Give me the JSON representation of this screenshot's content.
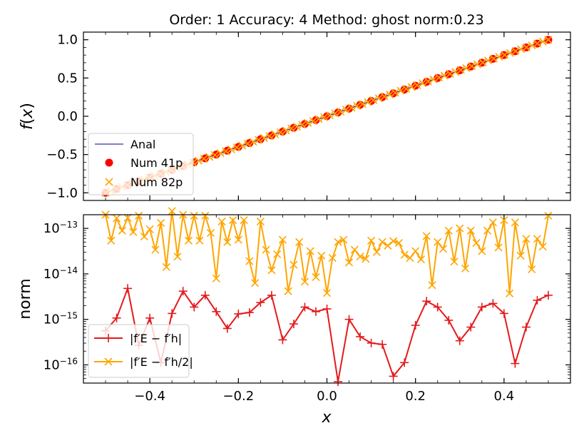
{
  "chart_data": [
    {
      "type": "line",
      "title": "Order: 1 Accuracy: 4 Method: ghost norm:0.23",
      "xlabel": "",
      "ylabel": "f(x)",
      "xlim": [
        -0.55,
        0.55
      ],
      "ylim": [
        -1.1,
        1.1
      ],
      "yticks": [
        -1.0,
        -0.5,
        0.0,
        0.5,
        1.0
      ],
      "ytick_labels": [
        "−1.0",
        "−0.5",
        "0.0",
        "0.5",
        "1.0"
      ],
      "grid": false,
      "legend_position": "lower-left",
      "series": [
        {
          "name": "Anal",
          "style": "line",
          "color": "#00008b",
          "x": [
            -0.5,
            0.5
          ],
          "y": [
            -1.0,
            1.0
          ]
        },
        {
          "name": "Num 41p",
          "style": "markers-circle",
          "color": "#ff0000",
          "n": 41,
          "x_range": [
            -0.5,
            0.5
          ],
          "y_range": [
            -1.0,
            1.0
          ]
        },
        {
          "name": "Num 82p",
          "style": "markers-x",
          "color": "#ffa500",
          "n": 82,
          "x_range": [
            -0.5,
            0.5
          ],
          "y_range": [
            -1.0,
            1.0
          ]
        }
      ]
    },
    {
      "type": "line",
      "title": "",
      "xlabel": "x",
      "ylabel": "norm",
      "xlim": [
        -0.55,
        0.55
      ],
      "ylim_log10": [
        -16.4,
        -12.7
      ],
      "yscale": "log",
      "xticks": [
        -0.4,
        -0.2,
        0.0,
        0.2,
        0.4
      ],
      "xtick_labels": [
        "−0.4",
        "−0.2",
        "0.0",
        "0.2",
        "0.4"
      ],
      "yticks_log10": [
        -13,
        -14,
        -15,
        -16
      ],
      "grid": false,
      "legend_position": "lower-left",
      "series": [
        {
          "name": "|f′E − f′h|",
          "color": "#e41a1c",
          "marker": "+",
          "x_range": [
            -0.5,
            0.5
          ],
          "log10_y": [
            -15.25,
            -14.97,
            -14.32,
            -15.57,
            -14.97,
            -15.95,
            -14.87,
            -14.38,
            -14.73,
            -14.47,
            -14.83,
            -15.2,
            -14.88,
            -14.85,
            -14.63,
            -14.47,
            -15.45,
            -15.1,
            -14.73,
            -14.83,
            -14.77,
            -16.37,
            -15.0,
            -15.38,
            -15.52,
            -15.55,
            -16.25,
            -15.95,
            -15.13,
            -14.6,
            -14.73,
            -15.02,
            -15.47,
            -15.17,
            -14.73,
            -14.65,
            -14.87,
            -15.97,
            -15.17,
            -14.58,
            -14.47
          ]
        },
        {
          "name": "|f′E − f′h/2|",
          "color": "#ffa500",
          "marker": "x",
          "x_range": [
            -0.5,
            0.5
          ],
          "log10_y": [
            -12.7,
            -13.27,
            -12.78,
            -13.05,
            -12.77,
            -13.08,
            -12.72,
            -13.18,
            -13.02,
            -13.47,
            -12.88,
            -13.85,
            -12.62,
            -13.62,
            -12.7,
            -13.27,
            -12.72,
            -13.27,
            -12.72,
            -13.1,
            -14.1,
            -12.85,
            -13.3,
            -12.82,
            -13.25,
            -12.82,
            -13.72,
            -14.2,
            -12.85,
            -13.47,
            -13.92,
            -13.57,
            -13.25,
            -14.38,
            -13.8,
            -13.3,
            -14.17,
            -13.5,
            -14.07,
            -13.6,
            -14.42,
            -13.65,
            -13.3,
            -13.25,
            -13.75,
            -13.47,
            -13.62,
            -13.67,
            -13.27,
            -13.52,
            -13.3,
            -13.38,
            -13.28,
            -13.32,
            -13.58,
            -13.65,
            -13.5,
            -13.68,
            -13.17,
            -14.25,
            -13.3,
            -13.45,
            -13.05,
            -13.73,
            -13.0,
            -13.88,
            -13.05,
            -13.32,
            -13.5,
            -13.05,
            -12.87,
            -13.42,
            -12.82,
            -14.43,
            -12.87,
            -13.6,
            -13.23,
            -13.9,
            -13.23,
            -13.4,
            -12.72
          ]
        }
      ]
    }
  ]
}
